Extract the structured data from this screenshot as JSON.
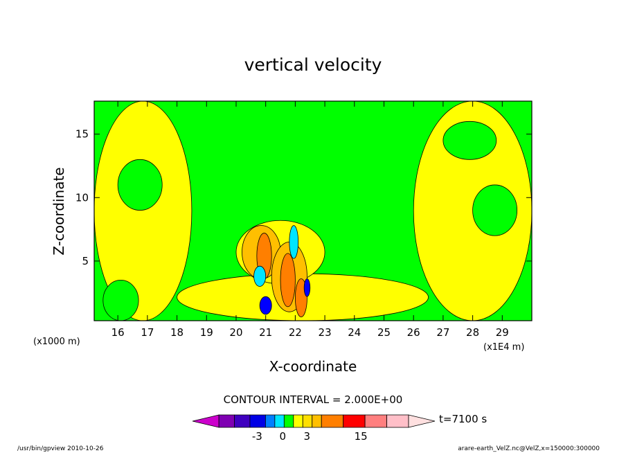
{
  "chart_data": {
    "type": "heatmap",
    "title": "vertical velocity",
    "xlabel": "X-coordinate",
    "ylabel": "Z-coordinate",
    "x_unit_label": "(x1E4 m)",
    "y_unit_label": "(x1000 m)",
    "xlim": [
      15.2,
      30.0
    ],
    "ylim": [
      0.3,
      17.6
    ],
    "x_ticks": [
      16,
      17,
      18,
      19,
      20,
      21,
      22,
      23,
      24,
      25,
      26,
      27,
      28,
      29
    ],
    "y_ticks": [
      5,
      10,
      15
    ],
    "background_level_color": "#00ff00",
    "regions": [
      {
        "level": "yellow",
        "color": "#ffff00",
        "x": 15.2,
        "y": 17.6,
        "w": 3.3,
        "h": 17.3
      },
      {
        "level": "yellow",
        "color": "#ffff00",
        "x": 26.0,
        "y": 17.6,
        "w": 4.0,
        "h": 17.3
      },
      {
        "level": "yellow",
        "color": "#ffff00",
        "x": 18.0,
        "y": 4.0,
        "w": 8.5,
        "h": 3.7
      },
      {
        "level": "yellow",
        "color": "#ffff00",
        "x": 20.0,
        "y": 8.2,
        "w": 3.0,
        "h": 5.0
      },
      {
        "level": "green",
        "color": "#00ff00",
        "x": 16.0,
        "y": 13.0,
        "w": 1.5,
        "h": 4.0
      },
      {
        "level": "green",
        "color": "#00ff00",
        "x": 27.0,
        "y": 16.0,
        "w": 1.8,
        "h": 3.0
      },
      {
        "level": "green",
        "color": "#00ff00",
        "x": 15.5,
        "y": 3.5,
        "w": 1.2,
        "h": 3.2
      },
      {
        "level": "green",
        "color": "#00ff00",
        "x": 28.0,
        "y": 11.0,
        "w": 1.5,
        "h": 4.0
      },
      {
        "level": "orange-light",
        "color": "#ffbf00",
        "x": 20.2,
        "y": 7.8,
        "w": 1.3,
        "h": 4.2
      },
      {
        "level": "orange-light",
        "color": "#ffbf00",
        "x": 21.2,
        "y": 6.5,
        "w": 1.2,
        "h": 5.5
      },
      {
        "level": "orange",
        "color": "#ff7f00",
        "x": 20.7,
        "y": 7.2,
        "w": 0.5,
        "h": 3.6
      },
      {
        "level": "orange",
        "color": "#ff7f00",
        "x": 21.5,
        "y": 5.6,
        "w": 0.5,
        "h": 4.2
      },
      {
        "level": "orange",
        "color": "#ff7f00",
        "x": 22.0,
        "y": 3.6,
        "w": 0.4,
        "h": 3.0
      },
      {
        "level": "cyan",
        "color": "#00e5ff",
        "x": 21.8,
        "y": 7.8,
        "w": 0.3,
        "h": 2.6
      },
      {
        "level": "cyan",
        "color": "#00e5ff",
        "x": 20.6,
        "y": 4.6,
        "w": 0.4,
        "h": 1.6
      },
      {
        "level": "blue",
        "color": "#0000ff",
        "x": 20.8,
        "y": 2.2,
        "w": 0.4,
        "h": 1.4
      },
      {
        "level": "blue",
        "color": "#0000ff",
        "x": 22.3,
        "y": 3.6,
        "w": 0.2,
        "h": 1.4
      }
    ],
    "colorbar": {
      "title": "CONTOUR INTERVAL = 2.000E+00",
      "time_label": "t=7100 s",
      "tick_labels": [
        "-3",
        "0",
        "3",
        "15"
      ],
      "colors": [
        "#cc00cc",
        "#7f00b2",
        "#3f00bf",
        "#0000e5",
        "#007fff",
        "#00e5ff",
        "#00ff00",
        "#ffff00",
        "#ffdf00",
        "#ffbf00",
        "#ff7f00",
        "#ff0000",
        "#ff7f7f",
        "#ffbfc8",
        "#ffe0e0"
      ]
    }
  },
  "footer": {
    "left": "/usr/bin/gpview   2010-10-26",
    "right": "arare-earth_VelZ.nc@VelZ,x=150000:300000"
  }
}
